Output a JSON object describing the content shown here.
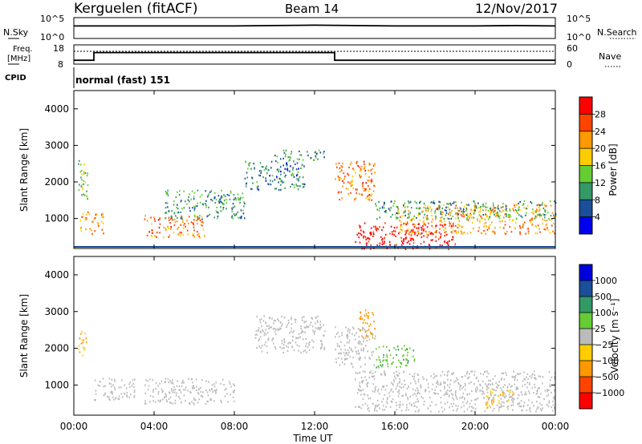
{
  "header": {
    "station": "Kerguelen (fitACF)",
    "beam": "Beam 14",
    "date": "12/Nov/2017"
  },
  "noise_panel": {
    "left_label": "N.Sky",
    "right_label": "N.Search",
    "left_ticks": [
      "10^5",
      "10^0"
    ],
    "right_ticks": [
      "10^5",
      "10^0"
    ]
  },
  "freq_panel": {
    "left_label_line1": "Freq.",
    "left_label_line2": "[MHz]",
    "right_label": "Nave",
    "left_ticks": [
      "18",
      "8"
    ],
    "right_ticks": [
      "60",
      "0"
    ]
  },
  "cpid": {
    "label": "CPID",
    "value": "normal (fast) 151"
  },
  "x_axis": {
    "title": "Time UT",
    "tick_labels": [
      "00:00",
      "04:00",
      "08:00",
      "12:00",
      "16:00",
      "20:00",
      "00:00"
    ]
  },
  "power_panel": {
    "y_title": "Slant Range [km]",
    "y_ticks": [
      "4000",
      "3000",
      "2000",
      "1000"
    ],
    "colorbar_title": "Power [dB]",
    "colorbar_ticks": [
      "28",
      "24",
      "20",
      "16",
      "12",
      "8",
      "4"
    ],
    "colors": [
      "#ff0000",
      "#ff4400",
      "#ff9900",
      "#ffcc00",
      "#66cc33",
      "#339966",
      "#1a4f99",
      "#0000ee"
    ]
  },
  "velocity_panel": {
    "y_title": "Slant Range [km]",
    "y_ticks": [
      "4000",
      "3000",
      "2000",
      "1000"
    ],
    "colorbar_title": "Velocity [m s⁻¹]",
    "colorbar_ticks": [
      "1000",
      "500",
      "100",
      "25",
      "−25",
      "−100",
      "−500",
      "−1000"
    ],
    "colors": [
      "#0000dd",
      "#1a4f99",
      "#339966",
      "#66cc33",
      "#bbbbbb",
      "#ffcc00",
      "#ff9900",
      "#ff4400",
      "#ff0000"
    ]
  },
  "chart_data": [
    {
      "type": "line",
      "panel": "noise",
      "series": [
        {
          "name": "N.Sky",
          "x": [
            0,
            2,
            4,
            6,
            8,
            10,
            12,
            14,
            16,
            18,
            20,
            22,
            24
          ],
          "y": [
            3.0,
            3.0,
            3.0,
            3.0,
            3.0,
            3.1,
            3.2,
            3.1,
            3.0,
            3.0,
            3.0,
            3.1,
            3.0
          ]
        }
      ],
      "xlim": [
        0,
        24
      ],
      "ylim": [
        0,
        5
      ]
    },
    {
      "type": "line",
      "panel": "frequency",
      "series": [
        {
          "name": "Freq.",
          "x": [
            0,
            1.0,
            1.0,
            13.0,
            13.0,
            24
          ],
          "y": [
            10,
            10,
            14,
            14,
            10,
            10
          ]
        },
        {
          "name": "Nave",
          "x": [
            0,
            24
          ],
          "y": [
            40,
            40
          ]
        }
      ],
      "xlim": [
        0,
        24
      ],
      "ylim_left": [
        8,
        18
      ],
      "ylim_right": [
        0,
        60
      ]
    },
    {
      "type": "heatmap",
      "panel": "power",
      "x_range_hours": [
        0,
        24
      ],
      "y_range_km": [
        180,
        4500
      ],
      "value_range_db": [
        0,
        30
      ],
      "features": [
        {
          "t": [
            0.2,
            0.7
          ],
          "r": [
            1500,
            2600
          ],
          "value": 12
        },
        {
          "t": [
            0.3,
            1.5
          ],
          "r": [
            600,
            1200
          ],
          "value": 20
        },
        {
          "t": [
            3.5,
            6.5
          ],
          "r": [
            500,
            1100
          ],
          "value": 22
        },
        {
          "t": [
            4.5,
            8.5
          ],
          "r": [
            1000,
            1800
          ],
          "value": 10
        },
        {
          "t": [
            8.5,
            11.5
          ],
          "r": [
            1800,
            2600
          ],
          "value": 8
        },
        {
          "t": [
            10.0,
            12.5
          ],
          "r": [
            2600,
            2900
          ],
          "value": 10
        },
        {
          "t": [
            13.0,
            15.0
          ],
          "r": [
            1500,
            2600
          ],
          "value": 22
        },
        {
          "t": [
            14.0,
            19.0
          ],
          "r": [
            180,
            900
          ],
          "value": 29
        },
        {
          "t": [
            16.0,
            24.0
          ],
          "r": [
            600,
            1400
          ],
          "value": 20
        },
        {
          "t": [
            15.0,
            24.0
          ],
          "r": [
            1000,
            1500
          ],
          "value": 10
        }
      ]
    },
    {
      "type": "heatmap",
      "panel": "velocity",
      "x_range_hours": [
        0,
        24
      ],
      "y_range_km": [
        180,
        4500
      ],
      "value_range_ms": [
        -1000,
        1000
      ],
      "features": [
        {
          "t": [
            0.2,
            0.6
          ],
          "r": [
            1800,
            2600
          ],
          "value": -100
        },
        {
          "t": [
            1.0,
            3.0
          ],
          "r": [
            600,
            1200
          ],
          "value": 0
        },
        {
          "t": [
            3.5,
            8.0
          ],
          "r": [
            500,
            1200
          ],
          "value": 0
        },
        {
          "t": [
            9.0,
            12.5
          ],
          "r": [
            1900,
            2900
          ],
          "value": 0
        },
        {
          "t": [
            13.0,
            15.0
          ],
          "r": [
            1500,
            2600
          ],
          "value": 0
        },
        {
          "t": [
            14.2,
            15.0
          ],
          "r": [
            2300,
            3100
          ],
          "value": -300
        },
        {
          "t": [
            15.0,
            17.0
          ],
          "r": [
            1500,
            2100
          ],
          "value": 80
        },
        {
          "t": [
            14.0,
            24.0
          ],
          "r": [
            300,
            1400
          ],
          "value": 0
        },
        {
          "t": [
            20.5,
            22.0
          ],
          "r": [
            400,
            900
          ],
          "value": -60
        }
      ]
    }
  ]
}
